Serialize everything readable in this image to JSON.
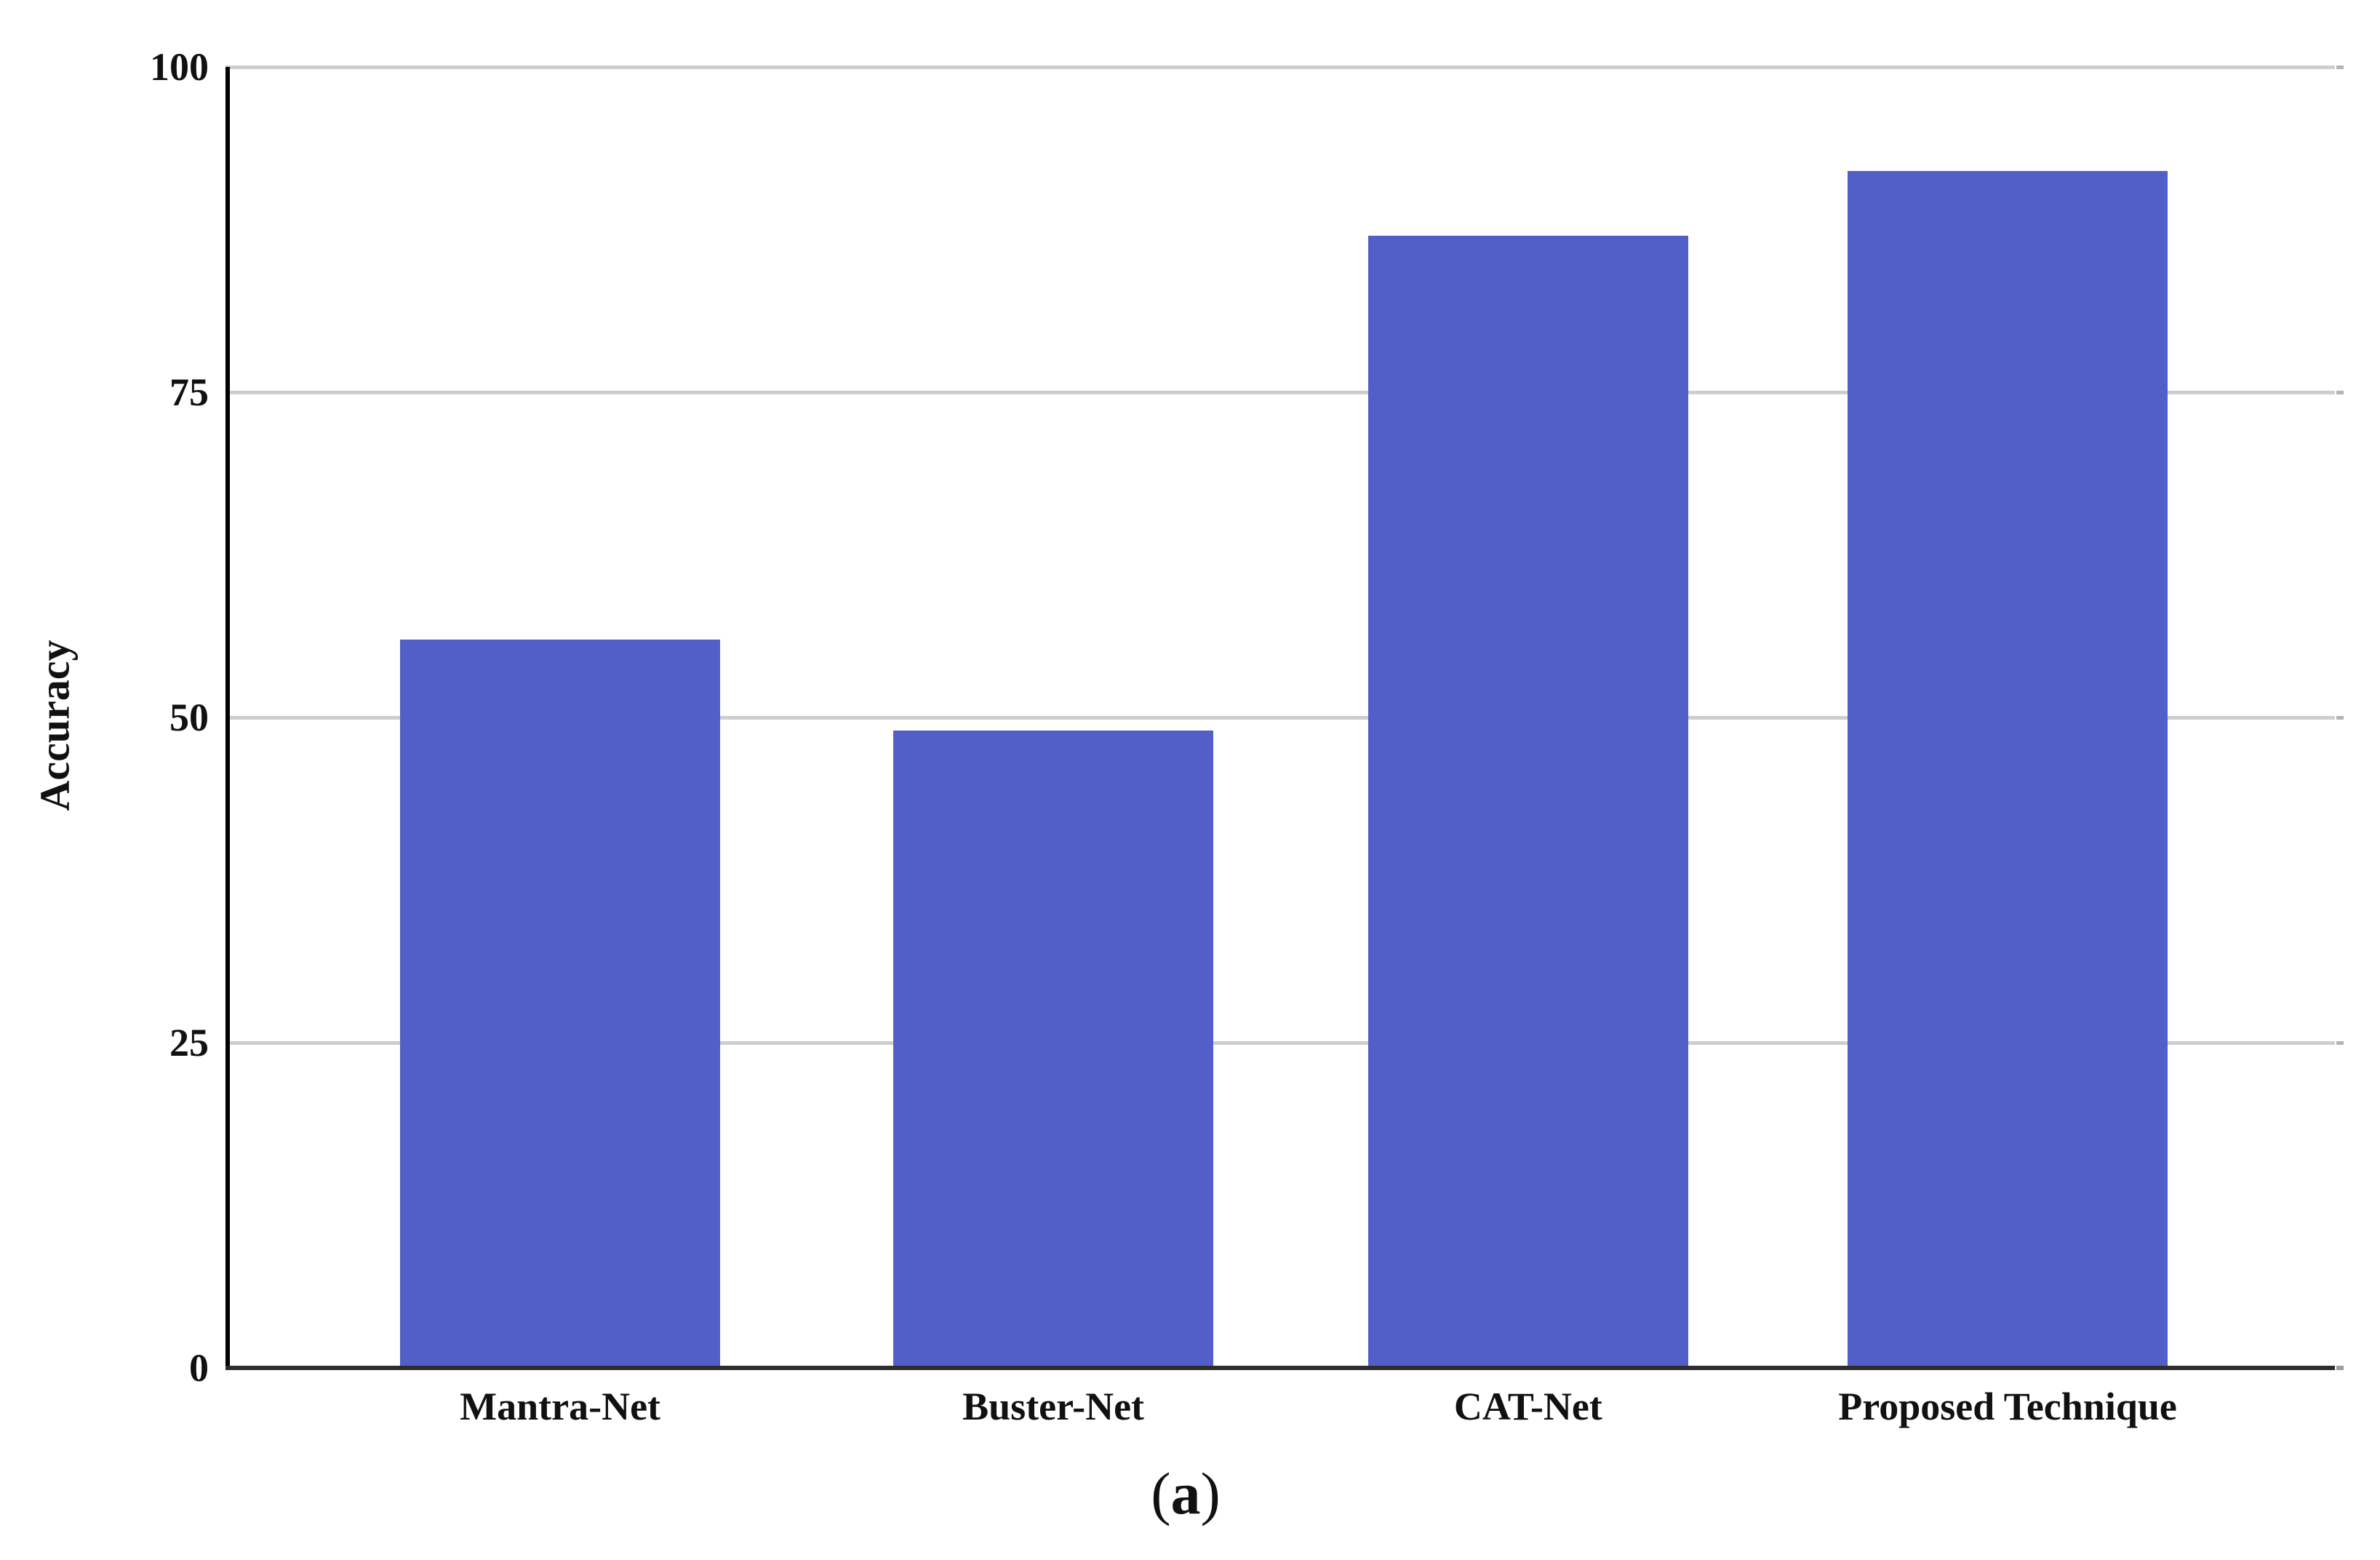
{
  "figure": {
    "caption": {
      "open": "(",
      "letter": "a",
      "close": ")"
    }
  },
  "chart_data": {
    "type": "bar",
    "title": "",
    "categories": [
      "Mantra-Net",
      "Buster-Net",
      "CAT-Net",
      "Proposed Technique"
    ],
    "values": [
      56,
      49,
      87,
      92
    ],
    "xlabel": "",
    "ylabel": "Accuracy",
    "ylim": [
      0,
      100
    ],
    "yticks": [
      0,
      25,
      50,
      75,
      100
    ],
    "grid": true,
    "legend_position": "none",
    "bar_color": "#535fc8",
    "gridline_color": "#cdcdcd"
  }
}
